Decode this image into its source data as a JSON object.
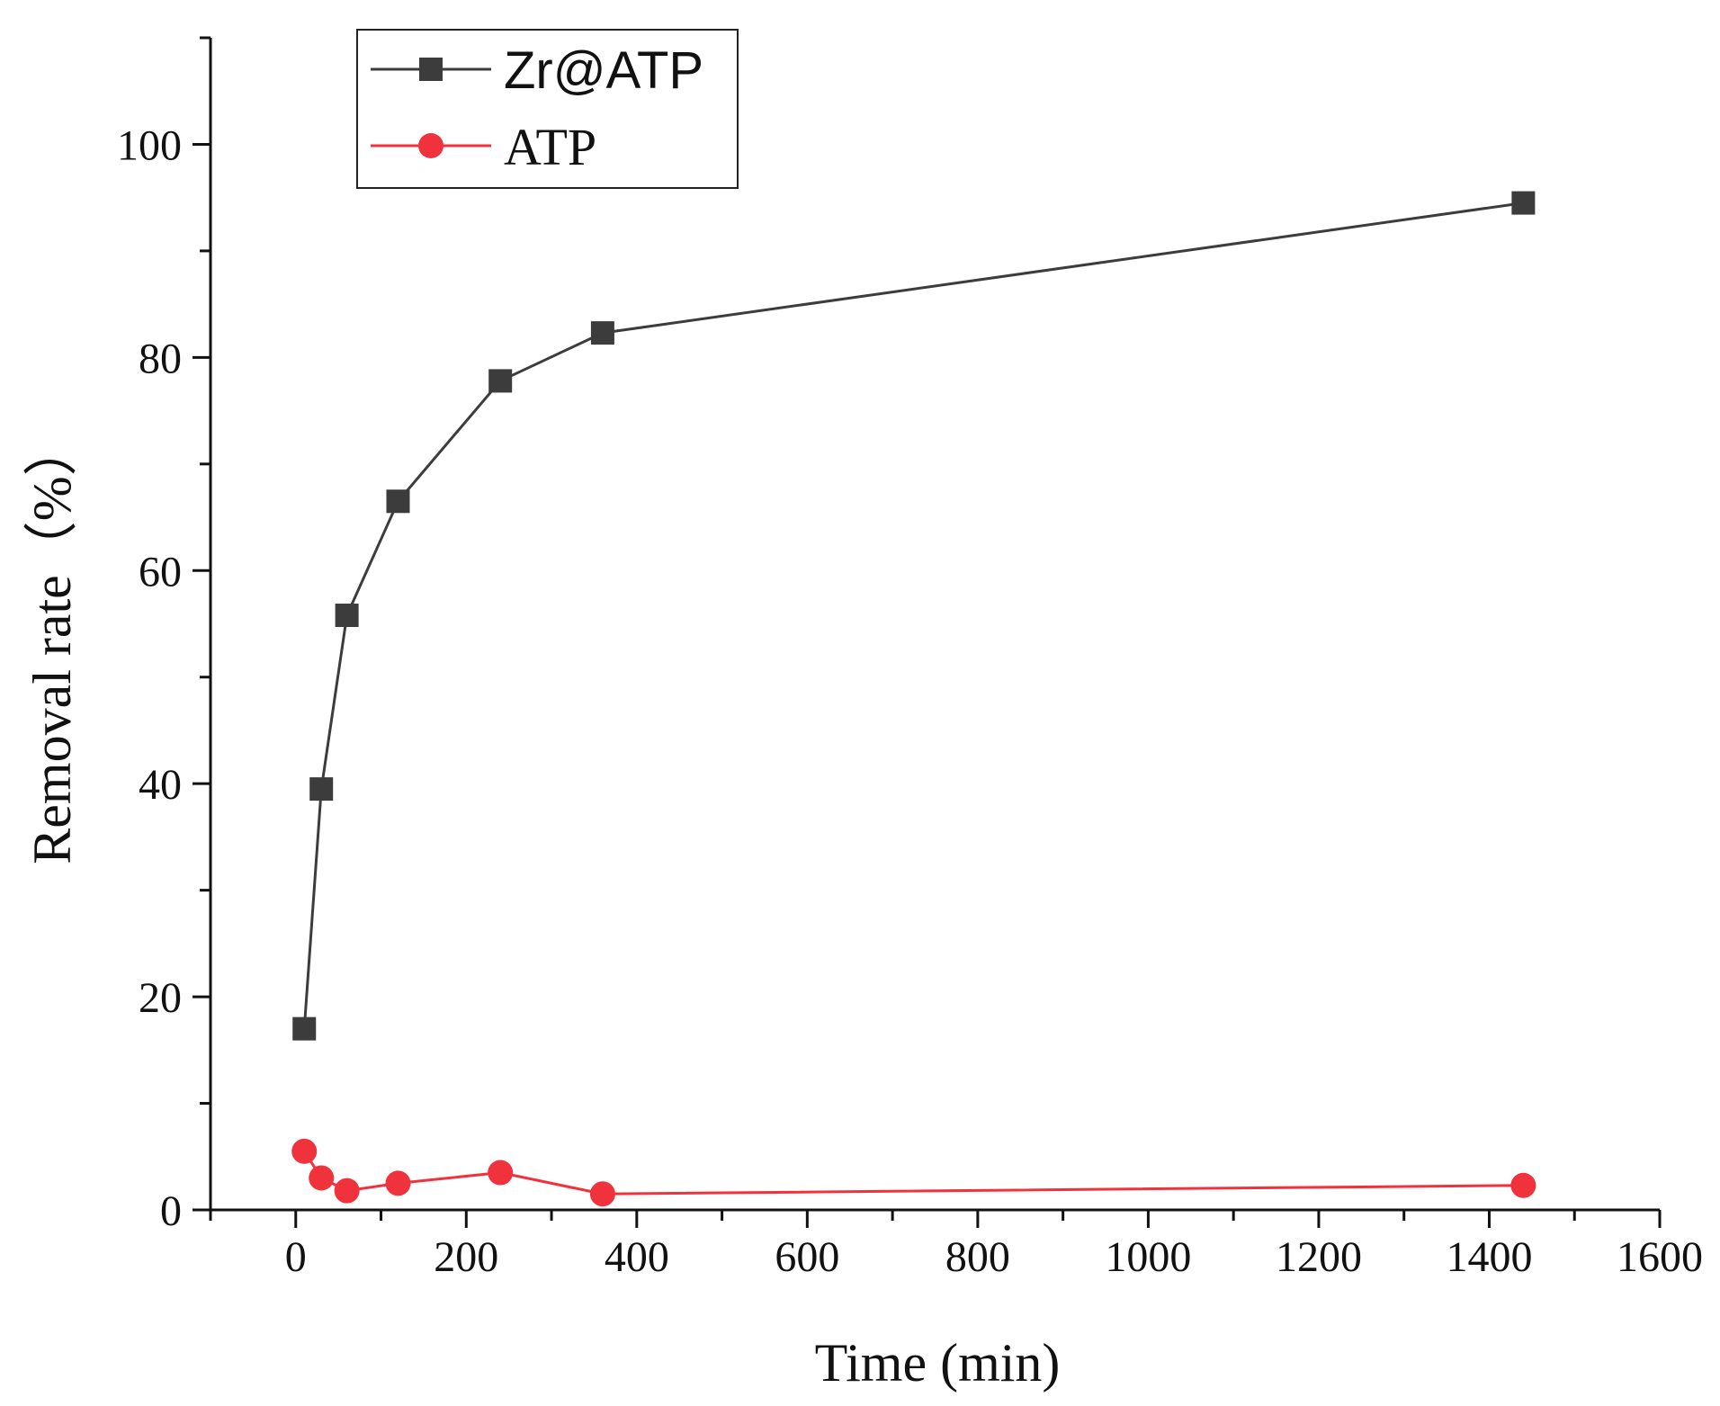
{
  "chart_data": {
    "type": "line",
    "title": "",
    "xlabel": "Time (min)",
    "ylabel": "Removal rate（%）",
    "xlim": [
      -100,
      1600
    ],
    "ylim": [
      0,
      110
    ],
    "x_ticks": [
      0,
      200,
      400,
      600,
      800,
      1000,
      1200,
      1400,
      1600
    ],
    "x_tick_labels": [
      "0",
      "200",
      "400",
      "600",
      "800",
      "1000",
      "1200",
      "1400",
      "1600"
    ],
    "y_ticks": [
      0,
      20,
      40,
      60,
      80,
      100
    ],
    "y_tick_labels": [
      "0",
      "20",
      "40",
      "60",
      "80",
      "100"
    ],
    "grid": false,
    "legend_position": "top-left",
    "series": [
      {
        "name": "Zr@ATP",
        "color": "#3c3c3c",
        "marker": "square",
        "x": [
          10,
          30,
          60,
          120,
          240,
          360,
          1440
        ],
        "values": [
          17.0,
          39.5,
          55.8,
          66.5,
          77.8,
          82.3,
          94.5
        ]
      },
      {
        "name": "ATP",
        "color": "#f0323c",
        "marker": "circle",
        "x": [
          10,
          30,
          60,
          120,
          240,
          360,
          1440
        ],
        "values": [
          5.5,
          3.0,
          1.8,
          2.5,
          3.5,
          1.5,
          2.3
        ]
      }
    ]
  }
}
